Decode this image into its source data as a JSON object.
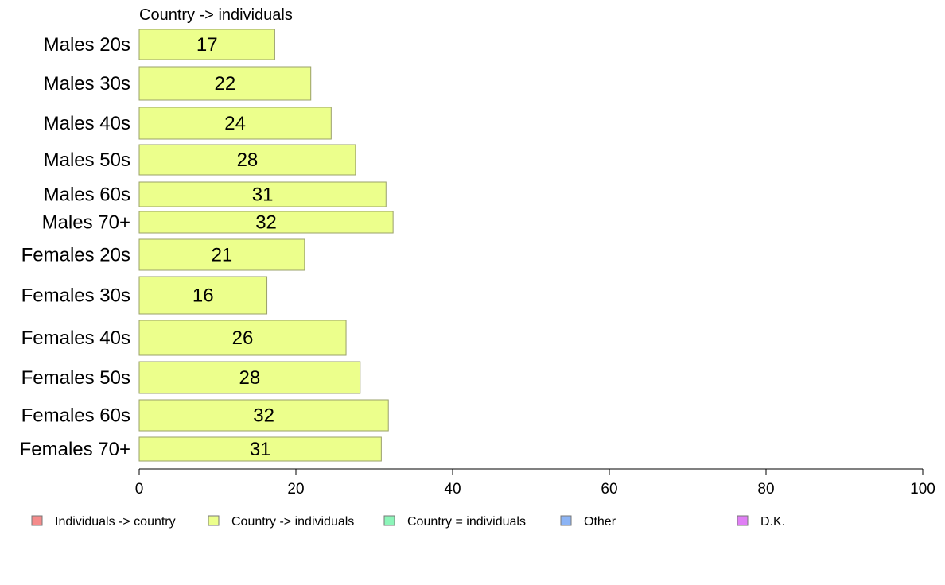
{
  "chart_data": {
    "type": "bar",
    "orientation": "horizontal",
    "title": "Country -> individuals",
    "categories": [
      "Males 20s",
      "Males 30s",
      "Males 40s",
      "Males 50s",
      "Males 60s",
      "Males 70+",
      "Females 20s",
      "Females 30s",
      "Females 40s",
      "Females 50s",
      "Females 60s",
      "Females 70+"
    ],
    "values": [
      17.3,
      21.9,
      24.5,
      27.6,
      31.5,
      32.4,
      21.1,
      16.3,
      26.4,
      28.2,
      31.8,
      30.9
    ],
    "data_labels": [
      "17",
      "22",
      "24",
      "28",
      "31",
      "32",
      "21",
      "16",
      "26",
      "28",
      "32",
      "31"
    ],
    "bar_color": "#ecff8c",
    "bar_stroke": "#9aa06a",
    "xlim": [
      0,
      100
    ],
    "xticks": [
      0,
      20,
      40,
      60,
      80,
      100
    ],
    "xtick_labels": [
      "0",
      "20",
      "40",
      "60",
      "80",
      "100"
    ],
    "grid": false,
    "legend": {
      "placement": "bottom",
      "items": [
        {
          "label": "Individuals -> country",
          "color": "#f58b8b"
        },
        {
          "label": "Country -> individuals",
          "color": "#ecff8c"
        },
        {
          "label": "Country = individuals",
          "color": "#8cf5b9"
        },
        {
          "label": "Other",
          "color": "#8cb4f5"
        },
        {
          "label": "D.K.",
          "color": "#e07ff5"
        }
      ]
    }
  }
}
